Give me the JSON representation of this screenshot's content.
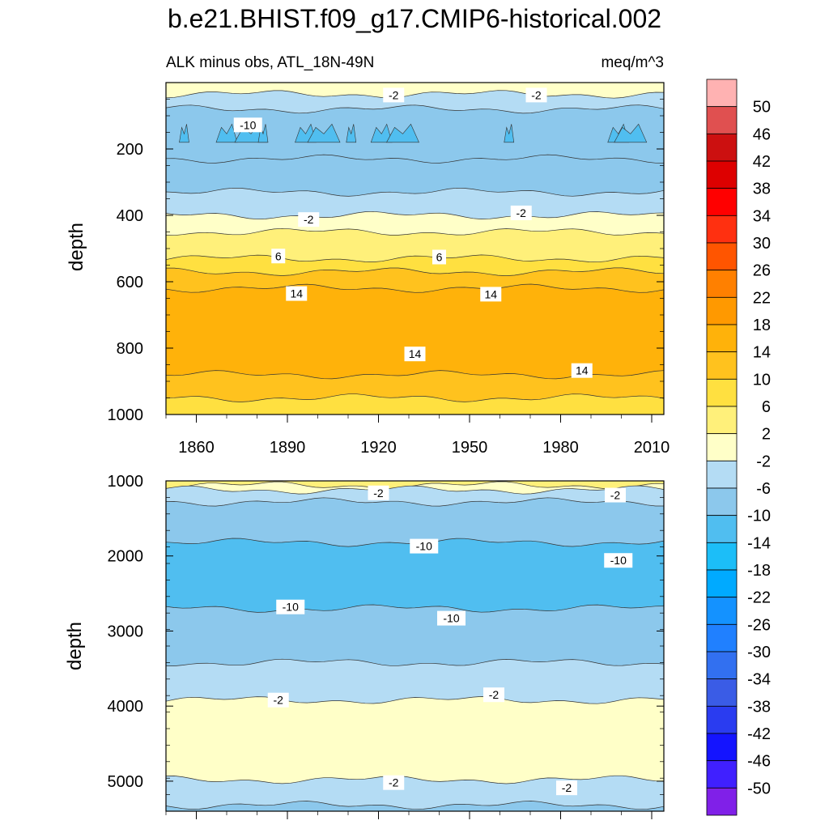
{
  "figure": {
    "title": "b.e21.BHIST.f09_g17.CMIP6-historical.002"
  },
  "chart_data": [
    {
      "type": "heatmap",
      "panel": "upper",
      "subtitle_left": "ALK minus obs, ATL_18N-49N",
      "subtitle_right": "meq/m^3",
      "ylabel": "depth",
      "xlim": [
        1850,
        2014
      ],
      "ylim": [
        1000,
        0
      ],
      "xticks": [
        "1860",
        "1890",
        "1920",
        "1950",
        "1980",
        "2010"
      ],
      "yticks": [
        "200",
        "400",
        "600",
        "800",
        "1000"
      ],
      "bands": [
        {
          "depth_top": 0,
          "depth_bottom": 35,
          "value": 2
        },
        {
          "depth_top": 35,
          "depth_bottom": 80,
          "value": -4
        },
        {
          "depth_top": 80,
          "depth_bottom": 230,
          "value": -8
        },
        {
          "depth_top": 230,
          "depth_bottom": 330,
          "value": -6
        },
        {
          "depth_top": 330,
          "depth_bottom": 400,
          "value": -4
        },
        {
          "depth_top": 400,
          "depth_bottom": 450,
          "value": 0
        },
        {
          "depth_top": 450,
          "depth_bottom": 530,
          "value": 4
        },
        {
          "depth_top": 530,
          "depth_bottom": 570,
          "value": 8
        },
        {
          "depth_top": 570,
          "depth_bottom": 620,
          "value": 12
        },
        {
          "depth_top": 620,
          "depth_bottom": 880,
          "value": 16
        },
        {
          "depth_top": 880,
          "depth_bottom": 950,
          "value": 12
        },
        {
          "depth_top": 950,
          "depth_bottom": 1000,
          "value": 8
        }
      ],
      "contour_labels": [
        {
          "text": "-10",
          "year": 1877,
          "depth": 130
        },
        {
          "text": "-2",
          "year": 1925,
          "depth": 40
        },
        {
          "text": "-2",
          "year": 1972,
          "depth": 40
        },
        {
          "text": "-2",
          "year": 1897,
          "depth": 415
        },
        {
          "text": "-2",
          "year": 1967,
          "depth": 395
        },
        {
          "text": "6",
          "year": 1887,
          "depth": 525
        },
        {
          "text": "6",
          "year": 1940,
          "depth": 528
        },
        {
          "text": "14",
          "year": 1893,
          "depth": 638
        },
        {
          "text": "14",
          "year": 1957,
          "depth": 640
        },
        {
          "text": "14",
          "year": 1932,
          "depth": 820
        },
        {
          "text": "14",
          "year": 1987,
          "depth": 870
        }
      ]
    },
    {
      "type": "heatmap",
      "panel": "lower",
      "ylabel": "depth",
      "xlim": [
        1850,
        2014
      ],
      "ylim": [
        5400,
        1000
      ],
      "yticks": [
        "1000",
        "2000",
        "3000",
        "4000",
        "5000"
      ],
      "bands": [
        {
          "depth_top": 1000,
          "depth_bottom": 1060,
          "value": 4
        },
        {
          "depth_top": 1060,
          "depth_bottom": 1120,
          "value": 0
        },
        {
          "depth_top": 1120,
          "depth_bottom": 1280,
          "value": -4
        },
        {
          "depth_top": 1280,
          "depth_bottom": 1820,
          "value": -8
        },
        {
          "depth_top": 1820,
          "depth_bottom": 2700,
          "value": -12
        },
        {
          "depth_top": 2700,
          "depth_bottom": 3420,
          "value": -8
        },
        {
          "depth_top": 3420,
          "depth_bottom": 3920,
          "value": -4
        },
        {
          "depth_top": 3920,
          "depth_bottom": 4980,
          "value": 0
        },
        {
          "depth_top": 4980,
          "depth_bottom": 5320,
          "value": -4
        },
        {
          "depth_top": 5320,
          "depth_bottom": 5400,
          "value": -8
        }
      ],
      "contour_labels": [
        {
          "text": "-2",
          "year": 1920,
          "depth": 1170
        },
        {
          "text": "-2",
          "year": 1998,
          "depth": 1200
        },
        {
          "text": "-10",
          "year": 1935,
          "depth": 1880
        },
        {
          "text": "-10",
          "year": 1999,
          "depth": 2070
        },
        {
          "text": "-10",
          "year": 1891,
          "depth": 2690
        },
        {
          "text": "-10",
          "year": 1944,
          "depth": 2840
        },
        {
          "text": "-2",
          "year": 1887,
          "depth": 3930
        },
        {
          "text": "-2",
          "year": 1958,
          "depth": 3860
        },
        {
          "text": "-2",
          "year": 1925,
          "depth": 5030
        },
        {
          "text": "-2",
          "year": 1982,
          "depth": 5100
        }
      ]
    }
  ],
  "colorbar": {
    "labels": [
      "50",
      "46",
      "42",
      "38",
      "34",
      "30",
      "26",
      "22",
      "18",
      "14",
      "10",
      "6",
      "2",
      "-2",
      "-6",
      "-10",
      "-14",
      "-18",
      "-22",
      "-26",
      "-30",
      "-34",
      "-38",
      "-42",
      "-46",
      "-50"
    ],
    "colors": [
      "#ffb2b2",
      "#e05050",
      "#cc1010",
      "#dd0000",
      "#ff0000",
      "#ff3010",
      "#ff5500",
      "#ff8000",
      "#ff9900",
      "#ffb20a",
      "#ffc21e",
      "#ffe040",
      "#fff07a",
      "#ffffc8",
      "#b4dcf4",
      "#8cc8ec",
      "#50bef0",
      "#1cbef8",
      "#00aaff",
      "#1492ff",
      "#2080ff",
      "#3270f0",
      "#3a5ce6",
      "#2a3cf0",
      "#1414ff",
      "#4020ff",
      "#8020e8"
    ]
  }
}
